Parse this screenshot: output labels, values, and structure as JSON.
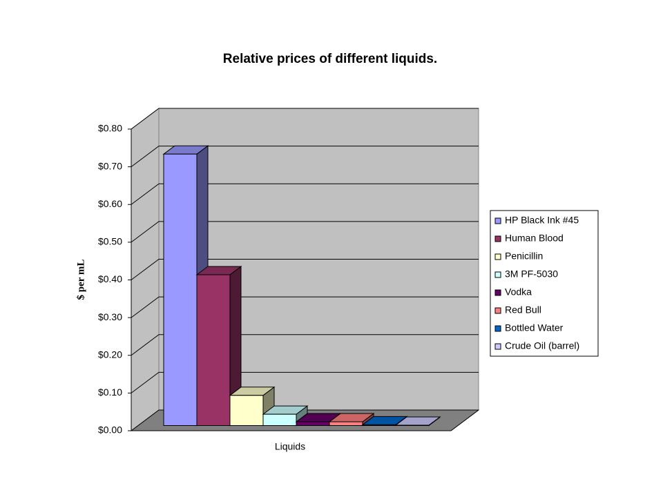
{
  "chart_data": {
    "type": "bar",
    "title": "Relative prices of different liquids.",
    "ylabel": "$ per mL",
    "categories": [
      "Liquids"
    ],
    "series": [
      {
        "name": "HP Black Ink #45",
        "color": "#9999ff",
        "values": [
          0.72
        ]
      },
      {
        "name": "Human Blood",
        "color": "#993366",
        "values": [
          0.4
        ]
      },
      {
        "name": "Penicillin",
        "color": "#ffffcc",
        "values": [
          0.08
        ]
      },
      {
        "name": "3M PF-5030",
        "color": "#ccffff",
        "values": [
          0.03
        ]
      },
      {
        "name": "Vodka",
        "color": "#660066",
        "values": [
          0.01
        ]
      },
      {
        "name": "Red Bull",
        "color": "#ff8080",
        "values": [
          0.01
        ]
      },
      {
        "name": "Bottled Water",
        "color": "#0066cc",
        "values": [
          0.002
        ]
      },
      {
        "name": "Crude Oil (barrel)",
        "color": "#ccccff",
        "values": [
          0.001
        ]
      }
    ],
    "ylim": [
      0,
      0.8
    ],
    "yticks": [
      {
        "value": 0,
        "label": "$0.00"
      },
      {
        "value": 0.1,
        "label": "$0.10"
      },
      {
        "value": 0.2,
        "label": "$0.20"
      },
      {
        "value": 0.3,
        "label": "$0.30"
      },
      {
        "value": 0.4,
        "label": "$0.40"
      },
      {
        "value": 0.5,
        "label": "$0.50"
      },
      {
        "value": 0.6,
        "label": "$0.60"
      },
      {
        "value": 0.7,
        "label": "$0.70"
      },
      {
        "value": 0.8,
        "label": "$0.80"
      }
    ],
    "grid": true,
    "legend": "right"
  }
}
